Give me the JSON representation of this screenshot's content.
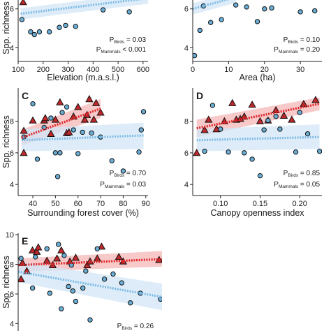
{
  "chart_data": [
    {
      "panel_letter": "",
      "type": "scatter",
      "xlabel": "Elevation (m.a.s.l.)",
      "ylabel": "Spp. richness",
      "xlim": [
        100,
        620
      ],
      "ylim": [
        3.3,
        6.6
      ],
      "xticks": [
        100,
        200,
        300,
        400,
        500,
        600
      ],
      "yticks": [
        4,
        6
      ],
      "p_values": [
        {
          "label": "P",
          "sub": "Birds",
          "text": " = 0.03"
        },
        {
          "label": "P",
          "sub": "Mammals",
          "text": " < 0.001"
        }
      ],
      "series": [
        {
          "marker": "triangle",
          "color": "#c0282b",
          "points": [
            [
              120,
              6.35
            ]
          ],
          "trend": null
        },
        {
          "marker": "circle",
          "color": "#6aaed6",
          "points": [
            [
              115,
              5.45
            ],
            [
              150,
              4.82
            ],
            [
              165,
              4.68
            ],
            [
              185,
              4.82
            ],
            [
              225,
              4.82
            ],
            [
              265,
              5.05
            ],
            [
              290,
              5.15
            ],
            [
              330,
              5.1
            ],
            [
              440,
              5.95
            ],
            [
              545,
              5.85
            ]
          ],
          "trend": {
            "x": [
              110,
              620
            ],
            "y": [
              5.75,
              6.55
            ]
          }
        }
      ]
    },
    {
      "panel_letter": "",
      "type": "scatter",
      "xlabel": "Area (ha)",
      "ylabel": "",
      "xlim": [
        0,
        36
      ],
      "ylim": [
        3.3,
        6.6
      ],
      "xticks": [
        0,
        10,
        20,
        30
      ],
      "yticks": [
        4,
        6
      ],
      "p_values": [
        {
          "label": "P",
          "sub": "Birds",
          "text": " = 0.10"
        },
        {
          "label": "P",
          "sub": "Mammals",
          "text": " = 0.20"
        }
      ],
      "series": [
        {
          "marker": "circle",
          "color": "#6aaed6",
          "points": [
            [
              0.5,
              3.6
            ],
            [
              2,
              4.9
            ],
            [
              3,
              6.15
            ],
            [
              5,
              5.3
            ],
            [
              8,
              5.45
            ],
            [
              12,
              6.2
            ],
            [
              15,
              6.1
            ],
            [
              18,
              5.35
            ],
            [
              20,
              6.0
            ],
            [
              22,
              6.05
            ],
            [
              30,
              5.85
            ],
            [
              34,
              5.9
            ]
          ],
          "trend": {
            "x": [
              0,
              12
            ],
            "y": [
              6.0,
              6.6
            ]
          }
        }
      ]
    },
    {
      "panel_letter": "C",
      "type": "scatter",
      "xlabel": "Surrounding forest cover (%)",
      "ylabel": "Spp. richness",
      "xlim": [
        33.5,
        91
      ],
      "ylim": [
        3.3,
        10.1
      ],
      "xticks": [
        40,
        50,
        60,
        70,
        80,
        90
      ],
      "yticks": [
        4,
        6,
        8
      ],
      "p_values": [
        {
          "label": "P",
          "sub": "Birds",
          "text": " = 0.70"
        },
        {
          "label": "P",
          "sub": "Mammals",
          "text": " = 0.03"
        }
      ],
      "series": [
        {
          "marker": "triangle",
          "color": "#c0282b",
          "points": [
            [
              36,
              7.4
            ],
            [
              36,
              6.0
            ],
            [
              40,
              8.05
            ],
            [
              45,
              8.05
            ],
            [
              45.5,
              8.2
            ],
            [
              48,
              7.2
            ],
            [
              50,
              8.1
            ],
            [
              52,
              9.2
            ],
            [
              55,
              7.25
            ],
            [
              56,
              7.3
            ],
            [
              58,
              8.3
            ],
            [
              60,
              8.9
            ],
            [
              63,
              8.1
            ],
            [
              64,
              8.4
            ],
            [
              65,
              9.4
            ],
            [
              67,
              8.1
            ],
            [
              68,
              9.15
            ],
            [
              70,
              8.55
            ]
          ],
          "trend": {
            "x": [
              35,
              70
            ],
            "y": [
              6.95,
              8.8
            ],
            "band_lo": [
              6.45,
              8.2
            ],
            "band_hi": [
              7.45,
              9.4
            ]
          }
        },
        {
          "marker": "circle",
          "color": "#6aaed6",
          "points": [
            [
              36,
              7.0
            ],
            [
              40,
              9.1
            ],
            [
              42,
              5.6
            ],
            [
              45,
              7.6
            ],
            [
              48,
              8.2
            ],
            [
              50,
              6.0
            ],
            [
              51,
              4.5
            ],
            [
              52,
              6.0
            ],
            [
              53,
              8.55
            ],
            [
              55,
              8.9
            ],
            [
              58,
              7.45
            ],
            [
              60,
              5.95
            ],
            [
              62,
              7.3
            ],
            [
              66,
              7.25
            ],
            [
              70,
              7.0
            ],
            [
              75,
              5.5
            ],
            [
              80,
              4.85
            ],
            [
              87,
              6.05
            ],
            [
              88,
              7.45
            ],
            [
              89,
              8.6
            ]
          ],
          "trend": {
            "x": [
              35,
              89
            ],
            "y": [
              6.8,
              7.1
            ],
            "band_lo": [
              6.1,
              6.25
            ],
            "band_hi": [
              7.5,
              7.9
            ]
          }
        }
      ]
    },
    {
      "panel_letter": "D",
      "type": "scatter",
      "xlabel": "Canopy openness index",
      "ylabel": "",
      "xlim": [
        0.065,
        0.228
      ],
      "ylim": [
        3.3,
        10.1
      ],
      "xticks": [
        0.1,
        0.15,
        0.2
      ],
      "yticks": [
        4,
        6,
        8
      ],
      "p_values": [
        {
          "label": "P",
          "sub": "Birds",
          "text": " = 0.85"
        },
        {
          "label": "P",
          "sub": "Mammals",
          "text": " = 0.05"
        }
      ],
      "series": [
        {
          "marker": "triangle",
          "color": "#c0282b",
          "points": [
            [
              0.07,
              6.0
            ],
            [
              0.08,
              7.45
            ],
            [
              0.085,
              8.1
            ],
            [
              0.095,
              7.5
            ],
            [
              0.105,
              8.0
            ],
            [
              0.115,
              9.15
            ],
            [
              0.12,
              8.1
            ],
            [
              0.125,
              8.15
            ],
            [
              0.13,
              8.3
            ],
            [
              0.14,
              9.05
            ],
            [
              0.15,
              8.0
            ],
            [
              0.16,
              8.05
            ],
            [
              0.17,
              8.7
            ],
            [
              0.18,
              8.35
            ],
            [
              0.19,
              8.1
            ],
            [
              0.205,
              9.1
            ],
            [
              0.22,
              9.35
            ]
          ],
          "trend": {
            "x": [
              0.07,
              0.225
            ],
            "y": [
              7.55,
              9.1
            ],
            "band_lo": [
              7.0,
              8.7
            ],
            "band_hi": [
              8.1,
              9.5
            ]
          }
        },
        {
          "marker": "circle",
          "color": "#6aaed6",
          "points": [
            [
              0.08,
              6.1
            ],
            [
              0.09,
              9.0
            ],
            [
              0.1,
              7.5
            ],
            [
              0.11,
              6.05
            ],
            [
              0.13,
              6.0
            ],
            [
              0.14,
              5.6
            ],
            [
              0.15,
              4.55
            ],
            [
              0.155,
              7.45
            ],
            [
              0.16,
              8.05
            ],
            [
              0.17,
              8.3
            ],
            [
              0.175,
              7.5
            ],
            [
              0.195,
              6.05
            ],
            [
              0.2,
              8.55
            ],
            [
              0.21,
              7.2
            ],
            [
              0.225,
              6.1
            ]
          ],
          "trend": {
            "x": [
              0.07,
              0.225
            ],
            "y": [
              6.8,
              7.0
            ],
            "band_lo": [
              6.1,
              6.25
            ],
            "band_hi": [
              7.5,
              7.8
            ]
          }
        }
      ]
    },
    {
      "panel_letter": "E",
      "type": "scatter",
      "xlabel": "",
      "ylabel": "Spp. richness",
      "xlim": [
        0,
        1
      ],
      "ylim": [
        3.5,
        10.1
      ],
      "xticks": [],
      "yticks": [
        4,
        6,
        8,
        10
      ],
      "p_values": [
        {
          "label": "P",
          "sub": "Birds",
          "text": " = 0.26"
        }
      ],
      "series": [
        {
          "marker": "triangle",
          "color": "#c0282b",
          "points": [
            [
              0.02,
              7.0
            ],
            [
              0.03,
              8.1
            ],
            [
              0.06,
              7.55
            ],
            [
              0.1,
              8.95
            ],
            [
              0.13,
              8.85
            ],
            [
              0.14,
              9.15
            ],
            [
              0.2,
              8.25
            ],
            [
              0.24,
              7.95
            ],
            [
              0.27,
              8.4
            ],
            [
              0.3,
              8.95
            ],
            [
              0.36,
              8.2
            ],
            [
              0.4,
              8.45
            ],
            [
              0.48,
              7.95
            ],
            [
              0.5,
              8.2
            ],
            [
              0.55,
              8.4
            ],
            [
              0.58,
              9.2
            ],
            [
              0.7,
              8.5
            ],
            [
              0.73,
              8.2
            ],
            [
              0.98,
              8.3
            ]
          ],
          "trend": {
            "x": [
              0.0,
              1.0
            ],
            "y": [
              7.95,
              8.35
            ],
            "band_lo": [
              7.5,
              7.85
            ],
            "band_hi": [
              8.4,
              8.9
            ]
          }
        },
        {
          "marker": "circle",
          "color": "#6aaed6",
          "points": [
            [
              0.02,
              8.4
            ],
            [
              0.1,
              6.4
            ],
            [
              0.12,
              8.5
            ],
            [
              0.2,
              9.05
            ],
            [
              0.22,
              6.05
            ],
            [
              0.28,
              9.35
            ],
            [
              0.3,
              5.0
            ],
            [
              0.32,
              8.6
            ],
            [
              0.35,
              6.5
            ],
            [
              0.37,
              7.95
            ],
            [
              0.38,
              6.2
            ],
            [
              0.4,
              5.5
            ],
            [
              0.45,
              6.4
            ],
            [
              0.47,
              7.55
            ],
            [
              0.5,
              4.25
            ],
            [
              0.55,
              9.05
            ],
            [
              0.6,
              7.0
            ],
            [
              0.66,
              7.35
            ],
            [
              0.72,
              6.75
            ],
            [
              0.78,
              5.4
            ],
            [
              0.85,
              6.05
            ],
            [
              0.99,
              5.65
            ]
          ],
          "trend": {
            "x": [
              0.0,
              1.0
            ],
            "y": [
              7.5,
              5.8
            ],
            "band_lo": [
              6.8,
              4.9
            ],
            "band_hi": [
              8.2,
              6.7
            ]
          }
        }
      ]
    }
  ]
}
